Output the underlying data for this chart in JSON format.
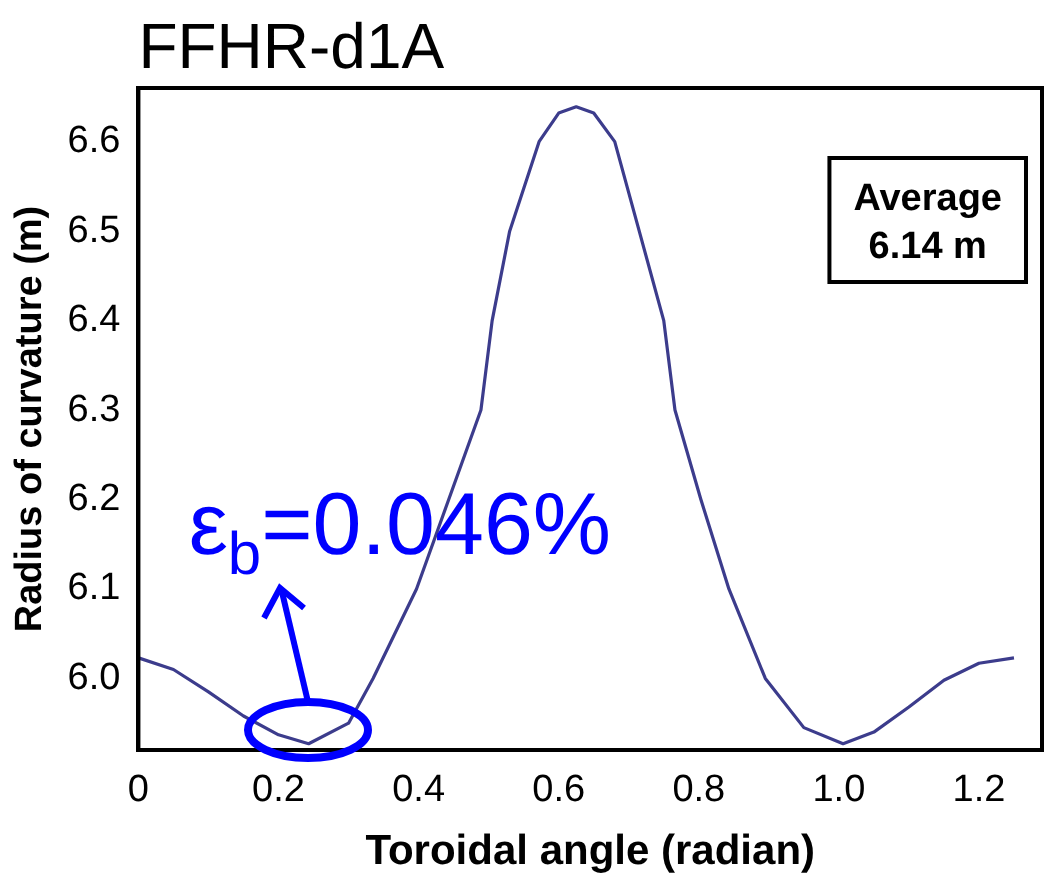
{
  "chart_data": {
    "type": "line",
    "title": "FFHR-d1A",
    "xlabel": "Toroidal angle (radian)",
    "ylabel": "Radius of curvature (m)",
    "xlim": [
      0,
      1.29
    ],
    "xticks": [
      0,
      0.2,
      0.4,
      0.6,
      0.8,
      {
        "value": 1,
        "label": "1.0"
      },
      1.2
    ],
    "ylim": [
      5.92,
      6.66
    ],
    "yticks": [
      {
        "value": 6,
        "label": "6.0"
      },
      6.1,
      6.2,
      6.3,
      6.4,
      6.5,
      6.6
    ],
    "grid": false,
    "legend": false,
    "marker": "none",
    "line_style": "solid",
    "annotations": [
      "Average\n6.14 m",
      {
        "text": "ε$_{b}$=0.046%",
        "x": 0.243,
        "y": 5.927
      }
    ],
    "series": [
      {
        "color": "#3c3c8c",
        "x": [
          0,
          0.05,
          0.1,
          0.15,
          0.2,
          0.243,
          0.3,
          0.335,
          0.397,
          0.443,
          0.489,
          0.505,
          0.53,
          0.572,
          0.6,
          0.625,
          0.65,
          0.68,
          0.715,
          0.75,
          0.766,
          0.803,
          0.843,
          0.895,
          0.95,
          1.006,
          1.05,
          1.1,
          1.15,
          1.2,
          1.25
        ],
        "values": [
          6.023,
          6.01,
          5.985,
          5.958,
          5.937,
          5.927,
          5.95,
          6.0,
          6.1,
          6.2,
          6.3,
          6.4,
          6.5,
          6.6,
          6.632,
          6.639,
          6.632,
          6.6,
          6.5,
          6.4,
          6.3,
          6.2,
          6.1,
          6.0,
          5.945,
          5.927,
          5.94,
          5.968,
          5.998,
          6.017,
          6.023
        ]
      }
    ]
  }
}
